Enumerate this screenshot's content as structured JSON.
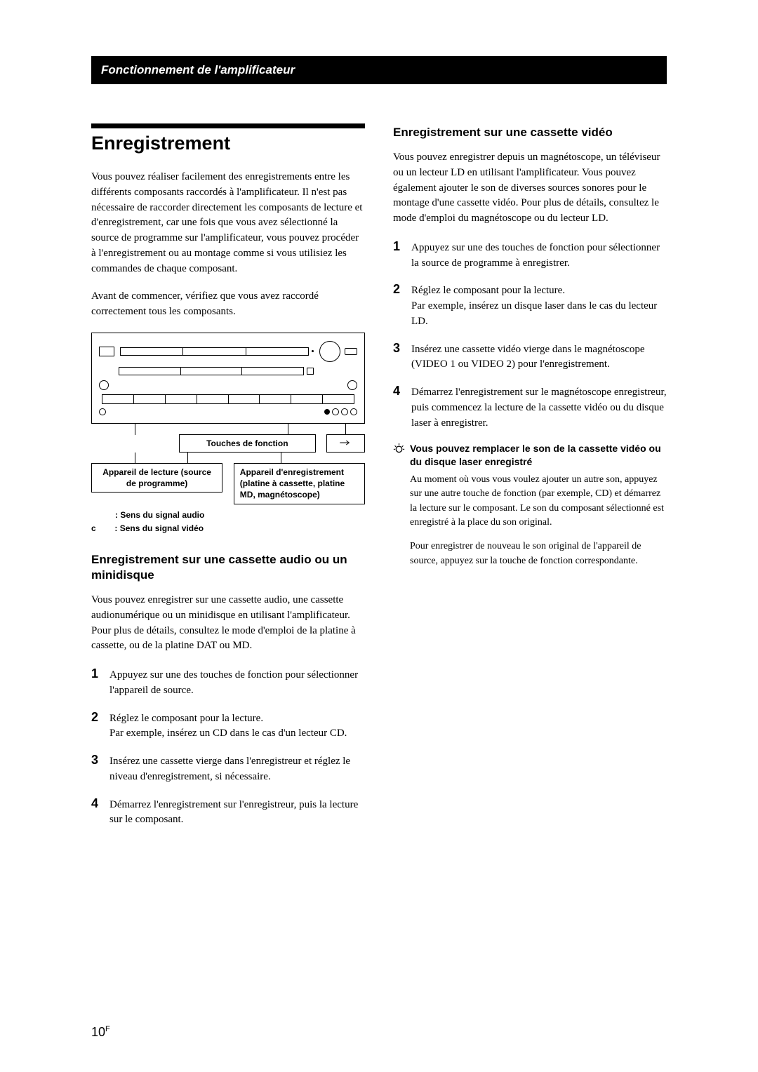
{
  "header": {
    "section_title": "Fonctionnement de l'amplificateur"
  },
  "left": {
    "main_title": "Enregistrement",
    "intro_p1": "Vous pouvez réaliser facilement des enregistrements entre les différents composants raccordés à l'amplificateur. Il n'est pas nécessaire de raccorder directement les composants de lecture et d'enregistrement, car une fois que vous avez sélectionné la source de programme sur l'amplificateur, vous pouvez procéder à l'enregistrement ou au montage comme si vous utilisiez les commandes de chaque composant.",
    "intro_p2": "Avant de commencer, vérifiez que vous avez raccordé correctement tous les composants.",
    "diagram": {
      "func_label": "Touches de fonction",
      "playback_label": "Appareil de lecture (source de programme)",
      "record_label": "Appareil d'enregistrement (platine à cassette, platine MD, magnétoscope)",
      "legend_audio": ": Sens du signal audio",
      "legend_video_prefix": "c",
      "legend_video": ": Sens du signal vidéo"
    },
    "section1_title": "Enregistrement sur une cassette audio ou un minidisque",
    "section1_intro": "Vous pouvez enregistrer sur une cassette audio, une cassette audionumérique ou un minidisque en utilisant l'amplificateur. Pour plus de détails, consultez le mode d'emploi de la platine à cassette, ou de la platine DAT ou MD.",
    "section1_steps": [
      "Appuyez sur une des touches de fonction pour sélectionner l'appareil de source.",
      "Réglez le composant pour la lecture.\nPar exemple, insérez un CD dans le cas d'un lecteur CD.",
      "Insérez une cassette vierge dans l'enregistreur et réglez le niveau d'enregistrement, si nécessaire.",
      "Démarrez l'enregistrement sur l'enregistreur, puis la lecture sur le composant."
    ]
  },
  "right": {
    "section2_title": "Enregistrement sur une cassette vidéo",
    "section2_intro": "Vous pouvez enregistrer depuis un magnétoscope, un téléviseur ou un lecteur LD en utilisant l'amplificateur. Vous pouvez également ajouter le son de diverses sources sonores pour le montage d'une cassette vidéo. Pour plus de détails, consultez le mode d'emploi du magnétoscope ou du lecteur LD.",
    "section2_steps": [
      "Appuyez sur une des touches de fonction pour sélectionner la source de programme à enregistrer.",
      "Réglez le composant pour la lecture.\nPar exemple, insérez un disque laser dans le cas du lecteur LD.",
      "Insérez une cassette vidéo vierge dans le magnétoscope (VIDEO 1 ou VIDEO 2) pour l'enregistrement.",
      "Démarrez l'enregistrement sur le magnétoscope enregistreur, puis commencez la lecture de la cassette vidéo ou du disque laser à enregistrer."
    ],
    "tip_heading": "Vous pouvez remplacer le son de la cassette vidéo ou du disque laser enregistré",
    "tip_p1": "Au moment où vous vous voulez ajouter un autre son, appuyez sur une autre touche de fonction (par exemple, CD) et démarrez la lecture sur le composant. Le son du composant sélectionné est enregistré à la place du son original.",
    "tip_p2": "Pour enregistrer de nouveau le son original de l'appareil de source, appuyez sur la touche de fonction correspondante."
  },
  "page_number": "10",
  "page_number_suffix": "F"
}
